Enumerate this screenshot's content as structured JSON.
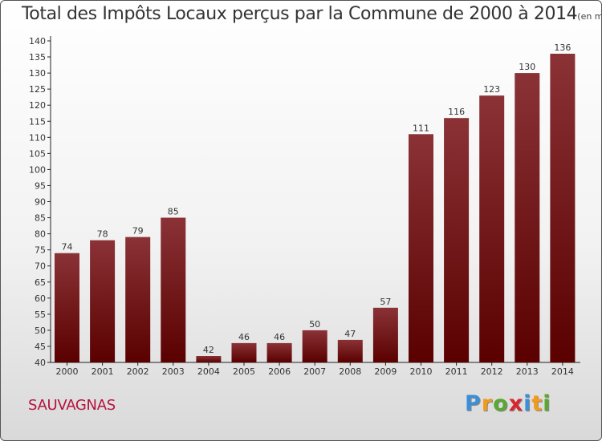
{
  "chart_data": {
    "type": "bar",
    "title": "Total des Impôts Locaux perçus par la Commune de 2000 à 2014",
    "subtitle": "(en milliers d'€)",
    "categories": [
      "2000",
      "2001",
      "2002",
      "2003",
      "2004",
      "2005",
      "2006",
      "2007",
      "2008",
      "2009",
      "2010",
      "2011",
      "2012",
      "2013",
      "2014"
    ],
    "values": [
      74,
      78,
      79,
      85,
      42,
      46,
      46,
      50,
      47,
      57,
      111,
      116,
      123,
      130,
      136
    ],
    "ylim": [
      40,
      140
    ],
    "ytick_step": 5,
    "grid": false,
    "colors": {
      "bar_top": "#8a3236",
      "bar_bottom": "#5a0000"
    }
  },
  "footer": {
    "commune": "SAUVAGNAS",
    "logo": {
      "letters": [
        "P",
        "r",
        "o",
        "x",
        "i",
        "t",
        "i"
      ],
      "colors": [
        "#3c8fd6",
        "#f39a1e",
        "#5aa832",
        "#d9262e",
        "#3c8fd6",
        "#f39a1e",
        "#5aa832"
      ]
    }
  }
}
